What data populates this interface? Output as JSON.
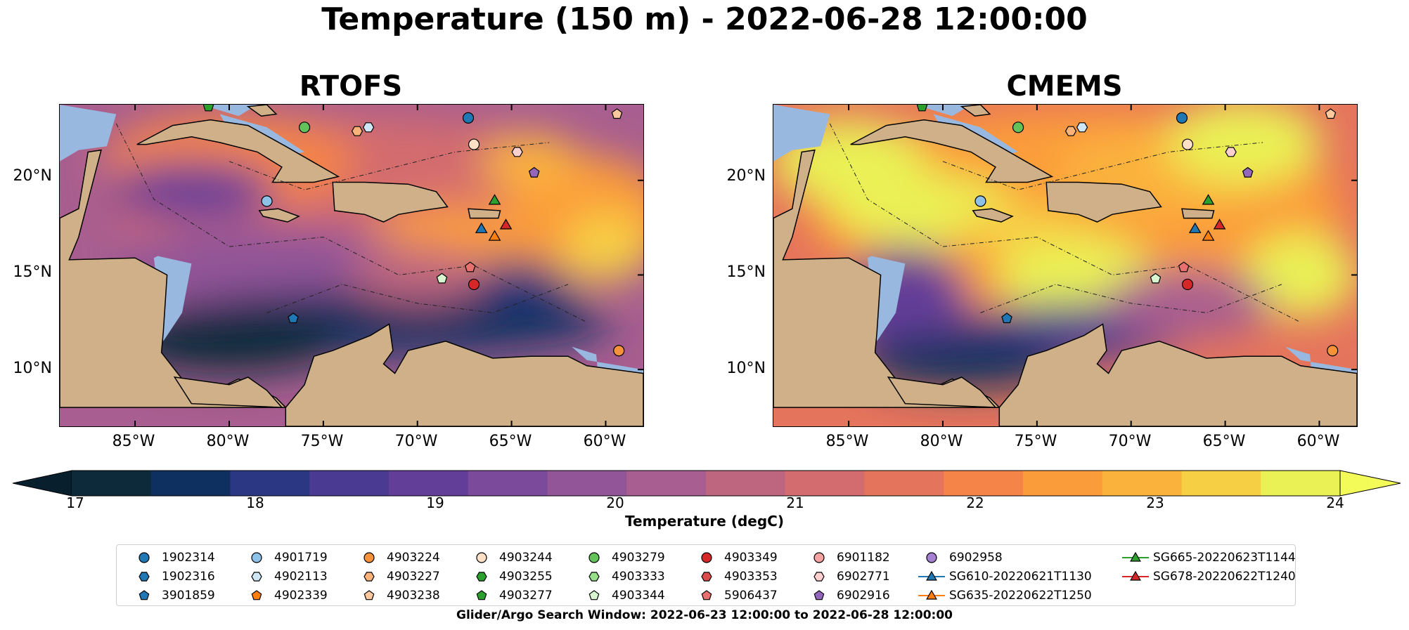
{
  "title": "Temperature (150 m) - 2022-06-28 12:00:00",
  "panels": [
    {
      "name": "RTOFS"
    },
    {
      "name": "CMEMS"
    }
  ],
  "lat_labels": [
    "20°N",
    "15°N",
    "10°N"
  ],
  "lon_labels": [
    "85°W",
    "80°W",
    "75°W",
    "70°W",
    "65°W",
    "60°W"
  ],
  "map_extent": {
    "lon": [
      -89,
      -58
    ],
    "lat": [
      7,
      24
    ]
  },
  "colorbar": {
    "label": "Temperature (degC)",
    "ticks": [
      "17",
      "18",
      "19",
      "20",
      "21",
      "22",
      "23",
      "24"
    ],
    "range": [
      17,
      24
    ],
    "extend": "both",
    "colors": [
      "#0d2a3b",
      "#0e3061",
      "#2b3783",
      "#4a3a92",
      "#633e98",
      "#7b4a9a",
      "#925598",
      "#a85e90",
      "#be6680",
      "#d36c6e",
      "#e5745c",
      "#f48447",
      "#fb9c3b",
      "#fbb23c",
      "#f7cf44",
      "#eaf155"
    ]
  },
  "legend": {
    "items": [
      {
        "label": "1902314",
        "marker": "circle",
        "color": "#1f77b4"
      },
      {
        "label": "1902316",
        "marker": "hexagon",
        "color": "#1f77b4"
      },
      {
        "label": "3901859",
        "marker": "pentagon",
        "color": "#1f77b4"
      },
      {
        "label": "4901719",
        "marker": "circle",
        "color": "#8ec1e8"
      },
      {
        "label": "4902113",
        "marker": "hexagon",
        "color": "#cfe6f5"
      },
      {
        "label": "4902339",
        "marker": "pentagon",
        "color": "#ff7f0e"
      },
      {
        "label": "4903224",
        "marker": "circle",
        "color": "#f5923a"
      },
      {
        "label": "4903227",
        "marker": "hexagon",
        "color": "#f9b278"
      },
      {
        "label": "4903238",
        "marker": "pentagon",
        "color": "#fcc89d"
      },
      {
        "label": "4903244",
        "marker": "circle",
        "color": "#fde0c5"
      },
      {
        "label": "4903255",
        "marker": "hexagon",
        "color": "#2ca02c"
      },
      {
        "label": "4903277",
        "marker": "pentagon",
        "color": "#2ca02c"
      },
      {
        "label": "4903279",
        "marker": "circle",
        "color": "#63c25a"
      },
      {
        "label": "4903333",
        "marker": "hexagon",
        "color": "#98df8a"
      },
      {
        "label": "4903344",
        "marker": "pentagon",
        "color": "#d7f5cf"
      },
      {
        "label": "4903349",
        "marker": "circle",
        "color": "#d62728"
      },
      {
        "label": "4903353",
        "marker": "hexagon",
        "color": "#dc4b4c"
      },
      {
        "label": "5906437",
        "marker": "pentagon",
        "color": "#e8706f"
      },
      {
        "label": "6901182",
        "marker": "circle",
        "color": "#f4a3a2"
      },
      {
        "label": "6902771",
        "marker": "hexagon",
        "color": "#fbd0cf"
      },
      {
        "label": "6902916",
        "marker": "pentagon",
        "color": "#9467bd"
      },
      {
        "label": "6902958",
        "marker": "circle",
        "color": "#a57fd0"
      },
      {
        "label": "SG610-20220621T1130",
        "marker": "triangle-line",
        "color": "#1f77b4"
      },
      {
        "label": "SG635-20220622T1250",
        "marker": "triangle-line",
        "color": "#ff7f0e"
      },
      {
        "label": "SG665-20220623T1144",
        "marker": "triangle-line",
        "color": "#2ca02c"
      },
      {
        "label": "SG678-20220622T1240",
        "marker": "triangle-line",
        "color": "#d62728"
      }
    ]
  },
  "footer": "Glider/Argo Search Window: 2022-06-23 12:00:00 to 2022-06-28 12:00:00",
  "land_color": "#cfb088",
  "shelf_color": "#98b8e0",
  "floats": [
    {
      "id": "1902314",
      "lon": -67.3,
      "lat": 23.3
    },
    {
      "id": "4902113",
      "lon": -72.6,
      "lat": 22.8
    },
    {
      "id": "4903227",
      "lon": -73.2,
      "lat": 22.6
    },
    {
      "id": "4903279",
      "lon": -76.0,
      "lat": 22.8
    },
    {
      "id": "4903244",
      "lon": -67.0,
      "lat": 21.9
    },
    {
      "id": "6902771",
      "lon": -64.7,
      "lat": 21.5
    },
    {
      "id": "6902916",
      "lon": -63.8,
      "lat": 20.4
    },
    {
      "id": "4901719",
      "lon": -78.0,
      "lat": 18.9
    },
    {
      "id": "SG665-20220623T1144",
      "lon": -65.9,
      "lat": 18.9
    },
    {
      "id": "SG610-20220621T1130",
      "lon": -66.6,
      "lat": 17.4
    },
    {
      "id": "SG635-20220622T1250",
      "lon": -65.9,
      "lat": 17.0
    },
    {
      "id": "SG678-20220622T1240",
      "lon": -65.3,
      "lat": 17.6
    },
    {
      "id": "5906437",
      "lon": -67.2,
      "lat": 15.4
    },
    {
      "id": "4903344",
      "lon": -68.7,
      "lat": 14.8
    },
    {
      "id": "4903349",
      "lon": -67.0,
      "lat": 14.5
    },
    {
      "id": "3901859",
      "lon": -76.6,
      "lat": 12.7
    },
    {
      "id": "4903224",
      "lon": -59.3,
      "lat": 11.0
    },
    {
      "id": "4903238",
      "lon": -59.4,
      "lat": 23.5
    },
    {
      "id": "4903277",
      "lon": -81.1,
      "lat": 23.9
    }
  ]
}
